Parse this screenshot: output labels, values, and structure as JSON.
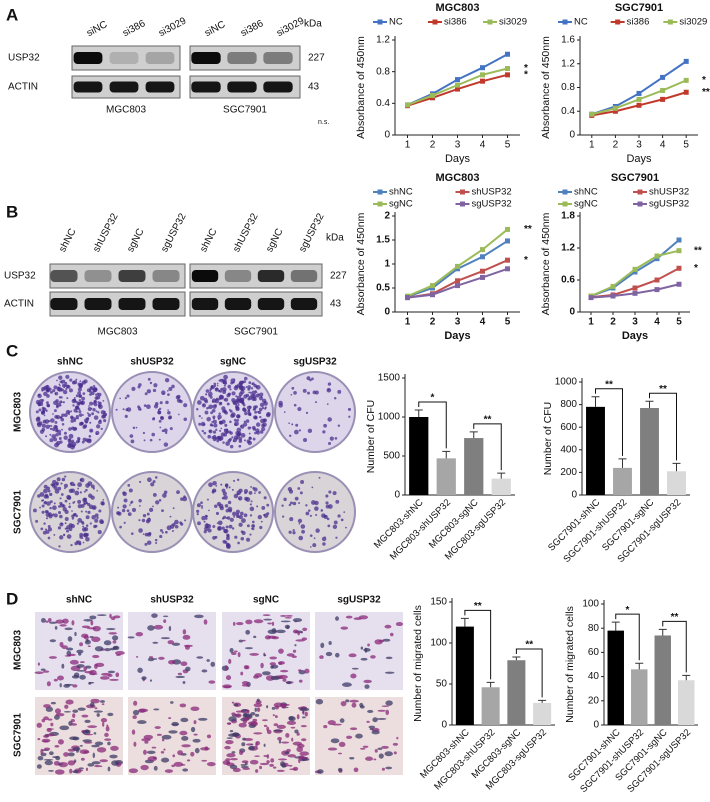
{
  "figure": {
    "panel_labels": [
      "A",
      "B",
      "C",
      "D"
    ],
    "blot_a": {
      "lanes": [
        "siNC",
        "si386",
        "si3029",
        "siNC",
        "si386",
        "si3029"
      ],
      "rows": [
        "USP32",
        "ACTIN"
      ],
      "kda": "kDa",
      "sizes": [
        "227",
        "43"
      ],
      "cells": [
        "MGC803",
        "SGC7901"
      ],
      "note": "n.s."
    },
    "blot_b": {
      "lanes": [
        "shNC",
        "shUSP32",
        "sgNC",
        "sgUSP32",
        "shNC",
        "shUSP32",
        "sgNC",
        "sgUSP32"
      ],
      "rows": [
        "USP32",
        "ACTIN"
      ],
      "kda": "kDa",
      "sizes": [
        "227",
        "43"
      ],
      "cells": [
        "MGC803",
        "SGC7901"
      ]
    },
    "colony": {
      "columns": [
        "shNC",
        "shUSP32",
        "sgNC",
        "sgUSP32"
      ],
      "rows": [
        "MGC803",
        "SGC7901"
      ]
    },
    "migration": {
      "columns": [
        "shNC",
        "shUSP32",
        "sgNC",
        "sgUSP32"
      ],
      "rows": [
        "MGC803",
        "SGC7901"
      ]
    }
  },
  "chart_data": [
    {
      "type": "line",
      "title": "MGC803",
      "x_label": "Days",
      "y_label": "Absorbance of 450nm",
      "x": [
        1,
        2,
        3,
        4,
        5
      ],
      "xlim": [
        0.5,
        5.5
      ],
      "xticks": [
        1,
        2,
        3,
        4,
        5
      ],
      "ylim": [
        0,
        1.2
      ],
      "yticks": [
        0,
        0.4,
        0.8,
        1.2
      ],
      "series": [
        {
          "name": "NC",
          "color": "#4472c4",
          "values": [
            0.38,
            0.52,
            0.7,
            0.85,
            1.02
          ]
        },
        {
          "name": "si386",
          "color": "#c0392b",
          "values": [
            0.37,
            0.47,
            0.58,
            0.68,
            0.76
          ]
        },
        {
          "name": "si3029",
          "color": "#9bbb59",
          "values": [
            0.38,
            0.5,
            0.63,
            0.76,
            0.84
          ]
        }
      ],
      "annotations": [
        "*",
        "*"
      ]
    },
    {
      "type": "line",
      "title": "SGC7901",
      "x_label": "Days",
      "y_label": "Absorbance of 450nm",
      "x": [
        1,
        2,
        3,
        4,
        5
      ],
      "xlim": [
        0.5,
        5.5
      ],
      "xticks": [
        1,
        2,
        3,
        4,
        5
      ],
      "ylim": [
        0,
        1.6
      ],
      "yticks": [
        0,
        0.4,
        0.8,
        1.2,
        1.6
      ],
      "series": [
        {
          "name": "NC",
          "color": "#4472c4",
          "values": [
            0.35,
            0.48,
            0.7,
            0.97,
            1.24
          ]
        },
        {
          "name": "si386",
          "color": "#c0392b",
          "values": [
            0.33,
            0.4,
            0.5,
            0.6,
            0.72
          ]
        },
        {
          "name": "si3029",
          "color": "#9bbb59",
          "values": [
            0.35,
            0.45,
            0.6,
            0.75,
            0.92
          ]
        }
      ],
      "annotations": [
        "**",
        "*"
      ]
    },
    {
      "type": "line",
      "title": "MGC803",
      "x_label": "Days",
      "y_label": "Absorbance of 450nm",
      "x": [
        1,
        2,
        3,
        4,
        5
      ],
      "xlim": [
        0.5,
        5.5
      ],
      "xticks": [
        1,
        2,
        3,
        4,
        5
      ],
      "ylim": [
        0,
        2
      ],
      "yticks": [
        0,
        0.5,
        1,
        1.5,
        2
      ],
      "series": [
        {
          "name": "shNC",
          "color": "#4f81bd",
          "values": [
            0.32,
            0.5,
            0.9,
            1.15,
            1.48
          ]
        },
        {
          "name": "shUSP32",
          "color": "#c0504d",
          "values": [
            0.3,
            0.38,
            0.65,
            0.85,
            1.08
          ]
        },
        {
          "name": "sgNC",
          "color": "#9bbb59",
          "values": [
            0.33,
            0.55,
            0.95,
            1.3,
            1.72
          ]
        },
        {
          "name": "sgUSP32",
          "color": "#8064a2",
          "values": [
            0.3,
            0.36,
            0.55,
            0.72,
            0.9
          ]
        }
      ],
      "annotations": [
        "*",
        "**"
      ]
    },
    {
      "type": "line",
      "title": "SGC7901",
      "x_label": "Days",
      "y_label": "Absorbance of 450nm",
      "x": [
        1,
        2,
        3,
        4,
        5
      ],
      "xlim": [
        0.5,
        5.5
      ],
      "xticks": [
        1,
        2,
        3,
        4,
        5
      ],
      "ylim": [
        0,
        1.8
      ],
      "yticks": [
        0,
        0.6,
        1.2,
        1.8
      ],
      "series": [
        {
          "name": "shNC",
          "color": "#4f81bd",
          "values": [
            0.3,
            0.45,
            0.75,
            1.0,
            1.35
          ]
        },
        {
          "name": "shUSP32",
          "color": "#c0504d",
          "values": [
            0.28,
            0.32,
            0.45,
            0.6,
            0.82
          ]
        },
        {
          "name": "sgNC",
          "color": "#9bbb59",
          "values": [
            0.3,
            0.48,
            0.8,
            1.05,
            1.15
          ]
        },
        {
          "name": "sgUSP32",
          "color": "#8064a2",
          "values": [
            0.27,
            0.3,
            0.35,
            0.42,
            0.52
          ]
        }
      ],
      "annotations": [
        "*",
        "**"
      ]
    },
    {
      "type": "bar",
      "y_label": "Number of CFU",
      "categories": [
        "MGC803-shNC",
        "MGC803-shUSP32",
        "MGC803-sgNC",
        "MGC803-sgUSP32"
      ],
      "values": [
        1000,
        470,
        730,
        210
      ],
      "errors": [
        90,
        90,
        80,
        70
      ],
      "colors": [
        "#000000",
        "#a6a6a6",
        "#7f7f7f",
        "#d9d9d9"
      ],
      "ylim": [
        0,
        1500
      ],
      "yticks": [
        0,
        500,
        1000,
        1500
      ],
      "annotations": [
        "*",
        "**"
      ]
    },
    {
      "type": "bar",
      "y_label": "Number of CFU",
      "categories": [
        "SGC7901-shNC",
        "SGC7901-shUSP32",
        "SGC7901-sgNC",
        "SGC7901-sgUSP32"
      ],
      "values": [
        780,
        240,
        770,
        210
      ],
      "errors": [
        90,
        80,
        60,
        70
      ],
      "colors": [
        "#000000",
        "#a6a6a6",
        "#7f7f7f",
        "#d9d9d9"
      ],
      "ylim": [
        0,
        1000
      ],
      "yticks": [
        0,
        200,
        400,
        600,
        800,
        1000
      ],
      "annotations": [
        "**",
        "**"
      ]
    },
    {
      "type": "bar",
      "y_label": "Number of migrated cells",
      "categories": [
        "MGC803-shNC",
        "MGC803-shUSP32",
        "MGC803-sgNC",
        "MGC803-sgUSP32"
      ],
      "values": [
        120,
        46,
        79,
        27
      ],
      "errors": [
        10,
        6,
        4,
        3
      ],
      "colors": [
        "#000000",
        "#a6a6a6",
        "#7f7f7f",
        "#d9d9d9"
      ],
      "ylim": [
        0,
        150
      ],
      "yticks": [
        0,
        50,
        100,
        150
      ],
      "annotations": [
        "**",
        "**"
      ]
    },
    {
      "type": "bar",
      "y_label": "Number of migrated cells",
      "categories": [
        "SGC7901-shNC",
        "SGC7901-shUSP32",
        "SGC7901-sgNC",
        "SGC7901-sgUSP32"
      ],
      "values": [
        78,
        46,
        74,
        37
      ],
      "errors": [
        7,
        5,
        5,
        4
      ],
      "colors": [
        "#000000",
        "#a6a6a6",
        "#7f7f7f",
        "#d9d9d9"
      ],
      "ylim": [
        0,
        100
      ],
      "yticks": [
        0,
        20,
        40,
        60,
        80,
        100
      ],
      "annotations": [
        "*",
        "**"
      ]
    }
  ]
}
